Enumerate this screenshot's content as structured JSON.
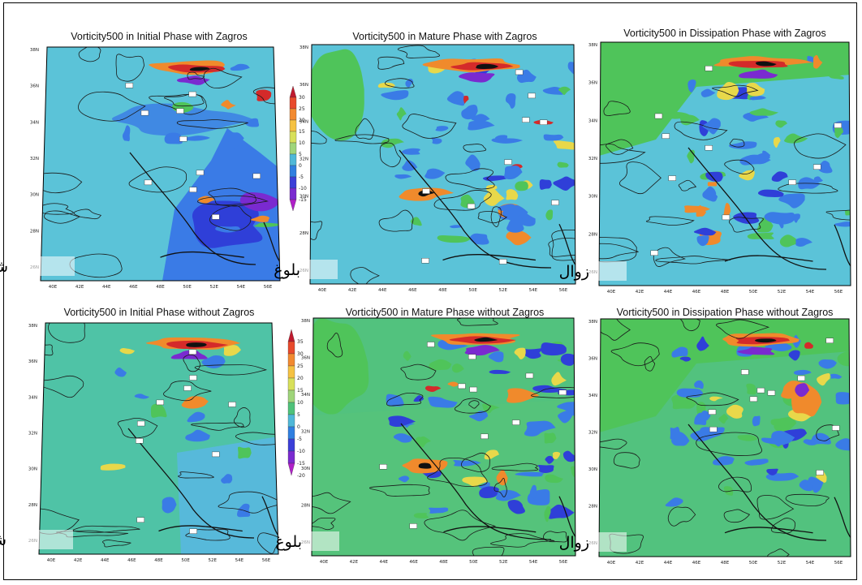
{
  "figure": {
    "panels": [
      {
        "title": "Vorticity500 in Initial Phase with Zagros",
        "phase_label": "شکل گیری",
        "scheme": "initial_with",
        "colorbar": true
      },
      {
        "title": "Vorticity500 in Mature Phase with Zagros",
        "phase_label": "بلوغ",
        "scheme": "mature_with",
        "colorbar": false
      },
      {
        "title": "Vorticity500 in Dissipation Phase with Zagros",
        "phase_label": "زوال",
        "scheme": "diss_with",
        "colorbar": false
      },
      {
        "title": "Vorticity500 in Initial Phase without Zagros",
        "phase_label": "شکل گیری",
        "scheme": "initial_without",
        "colorbar": true
      },
      {
        "title": "Vorticity500 in Mature Phase without Zagros",
        "phase_label": "بلوغ",
        "scheme": "mature_without",
        "colorbar": false
      },
      {
        "title": "Vorticity500 in Dissipation Phase without Zagros",
        "phase_label": "زوال",
        "scheme": "diss_without",
        "colorbar": false
      }
    ],
    "lon_ticks": [
      "40E",
      "42E",
      "44E",
      "46E",
      "48E",
      "50E",
      "52E",
      "54E",
      "56E"
    ],
    "lat_ticks": [
      "38N",
      "36N",
      "34N",
      "32N",
      "30N",
      "28N",
      "26N"
    ],
    "colorbar_top": {
      "labels": [
        "30",
        "25",
        "20",
        "15",
        "10",
        "5",
        "0",
        "-5",
        "-10",
        "-15"
      ],
      "colors": [
        "#c01a2e",
        "#e84a2c",
        "#f28a30",
        "#f5c242",
        "#d8e05a",
        "#9fd57a",
        "#4fb8d8",
        "#2f7fe0",
        "#3b3fd8",
        "#7a2ad0",
        "#b020c8"
      ]
    },
    "colorbar_bottom": {
      "labels": [
        "35",
        "30",
        "25",
        "20",
        "15",
        "10",
        "5",
        "0",
        "-5",
        "-10",
        "-15",
        "-20"
      ],
      "colors": [
        "#c01a2e",
        "#e84a2c",
        "#f28a30",
        "#f5c242",
        "#d8e05a",
        "#9fd57a",
        "#4fc27a",
        "#4fb8d8",
        "#2f7fe0",
        "#3b3fd8",
        "#7a2ad0",
        "#b020c8"
      ]
    },
    "palette": {
      "land_green": "#4fc45a",
      "cyan_base": "#5bc3d8",
      "blue": "#3a7be6",
      "dark_blue": "#2f3fd8",
      "purple": "#7a2ad0",
      "orange": "#f08a2c",
      "red": "#d42a2a",
      "yellow": "#e8d84a"
    }
  }
}
